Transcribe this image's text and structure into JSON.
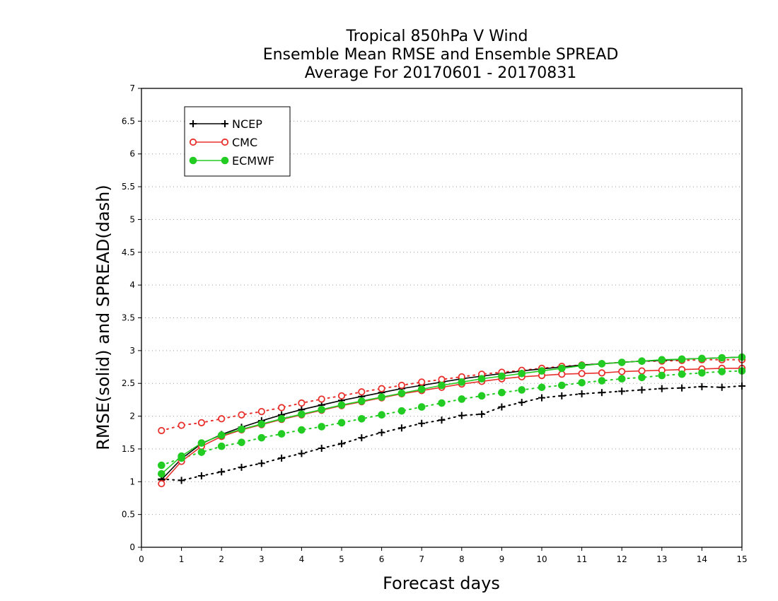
{
  "chart_data": {
    "type": "line",
    "title_lines": [
      "Tropical 850hPa V Wind",
      "Ensemble Mean RMSE and Ensemble SPREAD",
      "Average For 20170601 - 20170831"
    ],
    "xlabel": "Forecast days",
    "ylabel": "RMSE(solid)  and  SPREAD(dash)",
    "xlim": [
      0,
      15
    ],
    "ylim": [
      0,
      7
    ],
    "x_ticks": [
      "0",
      "1",
      "2",
      "3",
      "4",
      "5",
      "6",
      "7",
      "8",
      "9",
      "10",
      "11",
      "12",
      "13",
      "14",
      "15"
    ],
    "y_ticks": [
      "0",
      "0.5",
      "1",
      "1.5",
      "2",
      "2.5",
      "3",
      "3.5",
      "4",
      "4.5",
      "5",
      "5.5",
      "6",
      "6.5",
      "7"
    ],
    "grid": "horizontal dotted",
    "legend_position": "top-left",
    "x": [
      0.5,
      1,
      1.5,
      2,
      2.5,
      3,
      3.5,
      4,
      4.5,
      5,
      5.5,
      6,
      6.5,
      7,
      7.5,
      8,
      8.5,
      9,
      9.5,
      10,
      10.5,
      11,
      11.5,
      12,
      12.5,
      13,
      13.5,
      14,
      14.5,
      15
    ],
    "series": [
      {
        "name": "NCEP",
        "color": "#000000",
        "marker": "plus",
        "rmse": [
          1.03,
          1.35,
          1.58,
          1.72,
          1.83,
          1.93,
          2.02,
          2.1,
          2.17,
          2.24,
          2.3,
          2.36,
          2.42,
          2.47,
          2.52,
          2.57,
          2.61,
          2.65,
          2.69,
          2.72,
          2.75,
          2.78,
          2.8,
          2.82,
          2.84,
          2.85,
          2.87,
          2.88,
          2.89,
          2.9
        ],
        "spread": [
          1.04,
          1.02,
          1.09,
          1.15,
          1.22,
          1.28,
          1.36,
          1.43,
          1.51,
          1.58,
          1.67,
          1.75,
          1.82,
          1.89,
          1.94,
          2.01,
          2.03,
          2.14,
          2.21,
          2.28,
          2.31,
          2.34,
          2.36,
          2.38,
          2.4,
          2.42,
          2.43,
          2.45,
          2.44,
          2.46
        ]
      },
      {
        "name": "CMC",
        "color": "#e8302c",
        "marker": "open-circle",
        "rmse": [
          0.97,
          1.31,
          1.54,
          1.69,
          1.79,
          1.87,
          1.95,
          2.02,
          2.09,
          2.16,
          2.22,
          2.28,
          2.34,
          2.39,
          2.44,
          2.49,
          2.53,
          2.57,
          2.6,
          2.62,
          2.64,
          2.65,
          2.66,
          2.68,
          2.69,
          2.7,
          2.71,
          2.72,
          2.73,
          2.73
        ],
        "spread": [
          1.78,
          1.86,
          1.9,
          1.96,
          2.02,
          2.07,
          2.13,
          2.2,
          2.26,
          2.31,
          2.37,
          2.42,
          2.47,
          2.52,
          2.56,
          2.6,
          2.64,
          2.67,
          2.7,
          2.73,
          2.76,
          2.78,
          2.8,
          2.82,
          2.84,
          2.84,
          2.85,
          2.86,
          2.86,
          2.86
        ]
      },
      {
        "name": "ECMWF",
        "color": "#22cc22",
        "marker": "filled-circle",
        "rmse": [
          1.12,
          1.39,
          1.59,
          1.71,
          1.8,
          1.88,
          1.96,
          2.03,
          2.1,
          2.17,
          2.23,
          2.29,
          2.35,
          2.41,
          2.47,
          2.52,
          2.57,
          2.61,
          2.65,
          2.69,
          2.73,
          2.77,
          2.8,
          2.82,
          2.84,
          2.86,
          2.87,
          2.88,
          2.89,
          2.9
        ],
        "spread": [
          1.25,
          1.36,
          1.45,
          1.54,
          1.6,
          1.67,
          1.73,
          1.79,
          1.84,
          1.9,
          1.96,
          2.02,
          2.08,
          2.14,
          2.2,
          2.26,
          2.31,
          2.36,
          2.4,
          2.44,
          2.47,
          2.51,
          2.54,
          2.57,
          2.59,
          2.62,
          2.64,
          2.66,
          2.68,
          2.69
        ]
      }
    ]
  }
}
